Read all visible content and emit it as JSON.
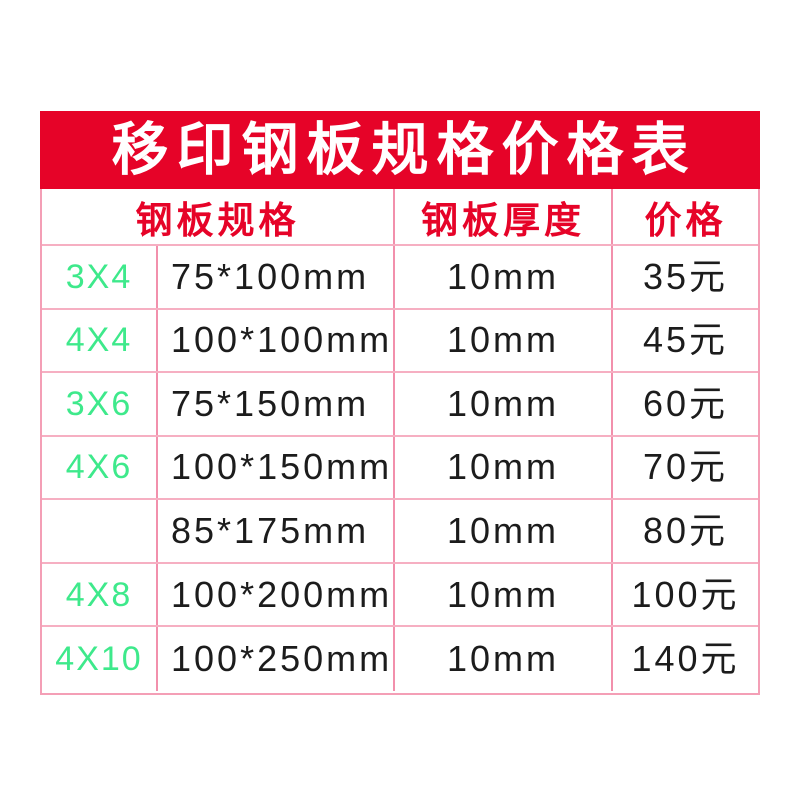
{
  "title": "移印钢板规格价格表",
  "table": {
    "headers": [
      {
        "label": "钢板规格"
      },
      {
        "label": "钢板厚度"
      },
      {
        "label": "价格"
      }
    ],
    "rows": [
      {
        "code": "3X4",
        "size": "75*100mm",
        "thickness": "10mm",
        "price": "35元"
      },
      {
        "code": "4X4",
        "size": "100*100mm",
        "thickness": "10mm",
        "price": "45元"
      },
      {
        "code": "3X6",
        "size": "75*150mm",
        "thickness": "10mm",
        "price": "60元"
      },
      {
        "code": "4X6",
        "size": "100*150mm",
        "thickness": "10mm",
        "price": "70元"
      },
      {
        "code": "",
        "size": "85*175mm",
        "thickness": "10mm",
        "price": "80元"
      },
      {
        "code": "4X8",
        "size": "100*200mm",
        "thickness": "10mm",
        "price": "100元"
      },
      {
        "code": "4X10",
        "size": "100*250mm",
        "thickness": "10mm",
        "price": "140元"
      }
    ]
  },
  "colors": {
    "banner_red": "#E60328",
    "header_text_red": "#E60328",
    "code_green": "#3EE98B",
    "text_black": "#1C1C1C",
    "grid_pink_vertical": "#F290AC",
    "grid_pink_horizontal": "#F6AFC2",
    "grid_pink_outer": "#F49FB6",
    "background": "#FFFFFF"
  }
}
